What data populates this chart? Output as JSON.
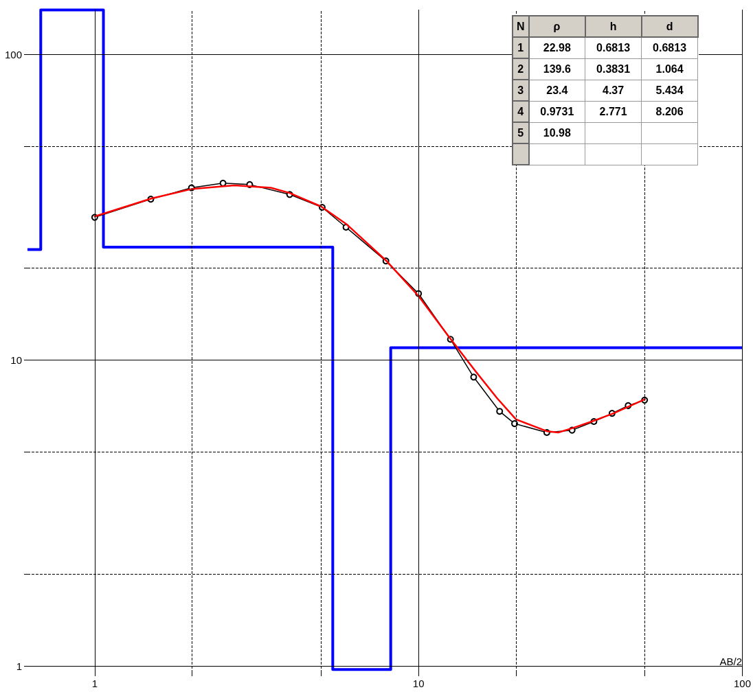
{
  "chart_data": {
    "type": "line",
    "xlabel": "AB/2",
    "log": "xy",
    "xlim": [
      0.62,
      100
    ],
    "ylim": [
      0.95,
      140
    ],
    "xticks": [
      1,
      {
        "value": 2,
        "label": null
      },
      {
        "value": 5,
        "label": null
      },
      10,
      {
        "value": 20,
        "label": null
      },
      {
        "value": 50,
        "label": null
      },
      100
    ],
    "yticks": [
      1,
      {
        "value": 2,
        "label": null
      },
      {
        "value": 5,
        "label": null
      },
      10,
      {
        "value": 20,
        "label": null
      },
      {
        "value": 50,
        "label": null
      },
      100
    ],
    "grid": true,
    "line_style": "solid",
    "series": [
      {
        "type": "step",
        "color": "#0000ff",
        "marker": "none",
        "x": [
          0.62,
          0.6813,
          1.064,
          5.434,
          8.206,
          100
        ],
        "values": [
          22.98,
          139.6,
          23.4,
          0.9731,
          10.98,
          10.98
        ]
      },
      {
        "type": "line",
        "color": "#000000",
        "marker": "circle",
        "x": [
          1,
          1.49,
          1.99,
          2.49,
          3.01,
          4.0,
          5.04,
          5.97,
          7.93,
          10,
          12.55,
          14.8,
          17.8,
          19.8,
          24.9,
          29.8,
          34.8,
          39.6,
          44.4,
          49.9
        ],
        "values": [
          29.3,
          33.6,
          36.6,
          37.9,
          37.5,
          34.8,
          31.6,
          27.2,
          21.1,
          16.5,
          11.7,
          8.8,
          6.8,
          6.2,
          5.8,
          5.9,
          6.3,
          6.7,
          7.1,
          7.4
        ]
      },
      {
        "type": "line",
        "color": "#ff0000",
        "marker": "none",
        "x": [
          1,
          1.5,
          2,
          2.7,
          3.5,
          4,
          5,
          6,
          8,
          10,
          12.5,
          15,
          17.5,
          20,
          25,
          27,
          30,
          35,
          40,
          50
        ],
        "values": [
          29.5,
          33.8,
          36.3,
          37.3,
          36.6,
          35.2,
          31.8,
          27.8,
          21,
          16.2,
          11.8,
          9.2,
          7.5,
          6.4,
          5.85,
          5.8,
          6.0,
          6.35,
          6.7,
          7.45
        ]
      }
    ],
    "annotations": [
      "N",
      "ρ",
      "h",
      "d",
      "1",
      "22.98",
      "0.6813",
      "0.6813",
      "2",
      "139.6",
      "0.3831",
      "1.064",
      "3",
      "23.4",
      "4.37",
      "5.434",
      "4",
      "0.9731",
      "2.771",
      "8.206",
      "5",
      "10.98"
    ]
  }
}
